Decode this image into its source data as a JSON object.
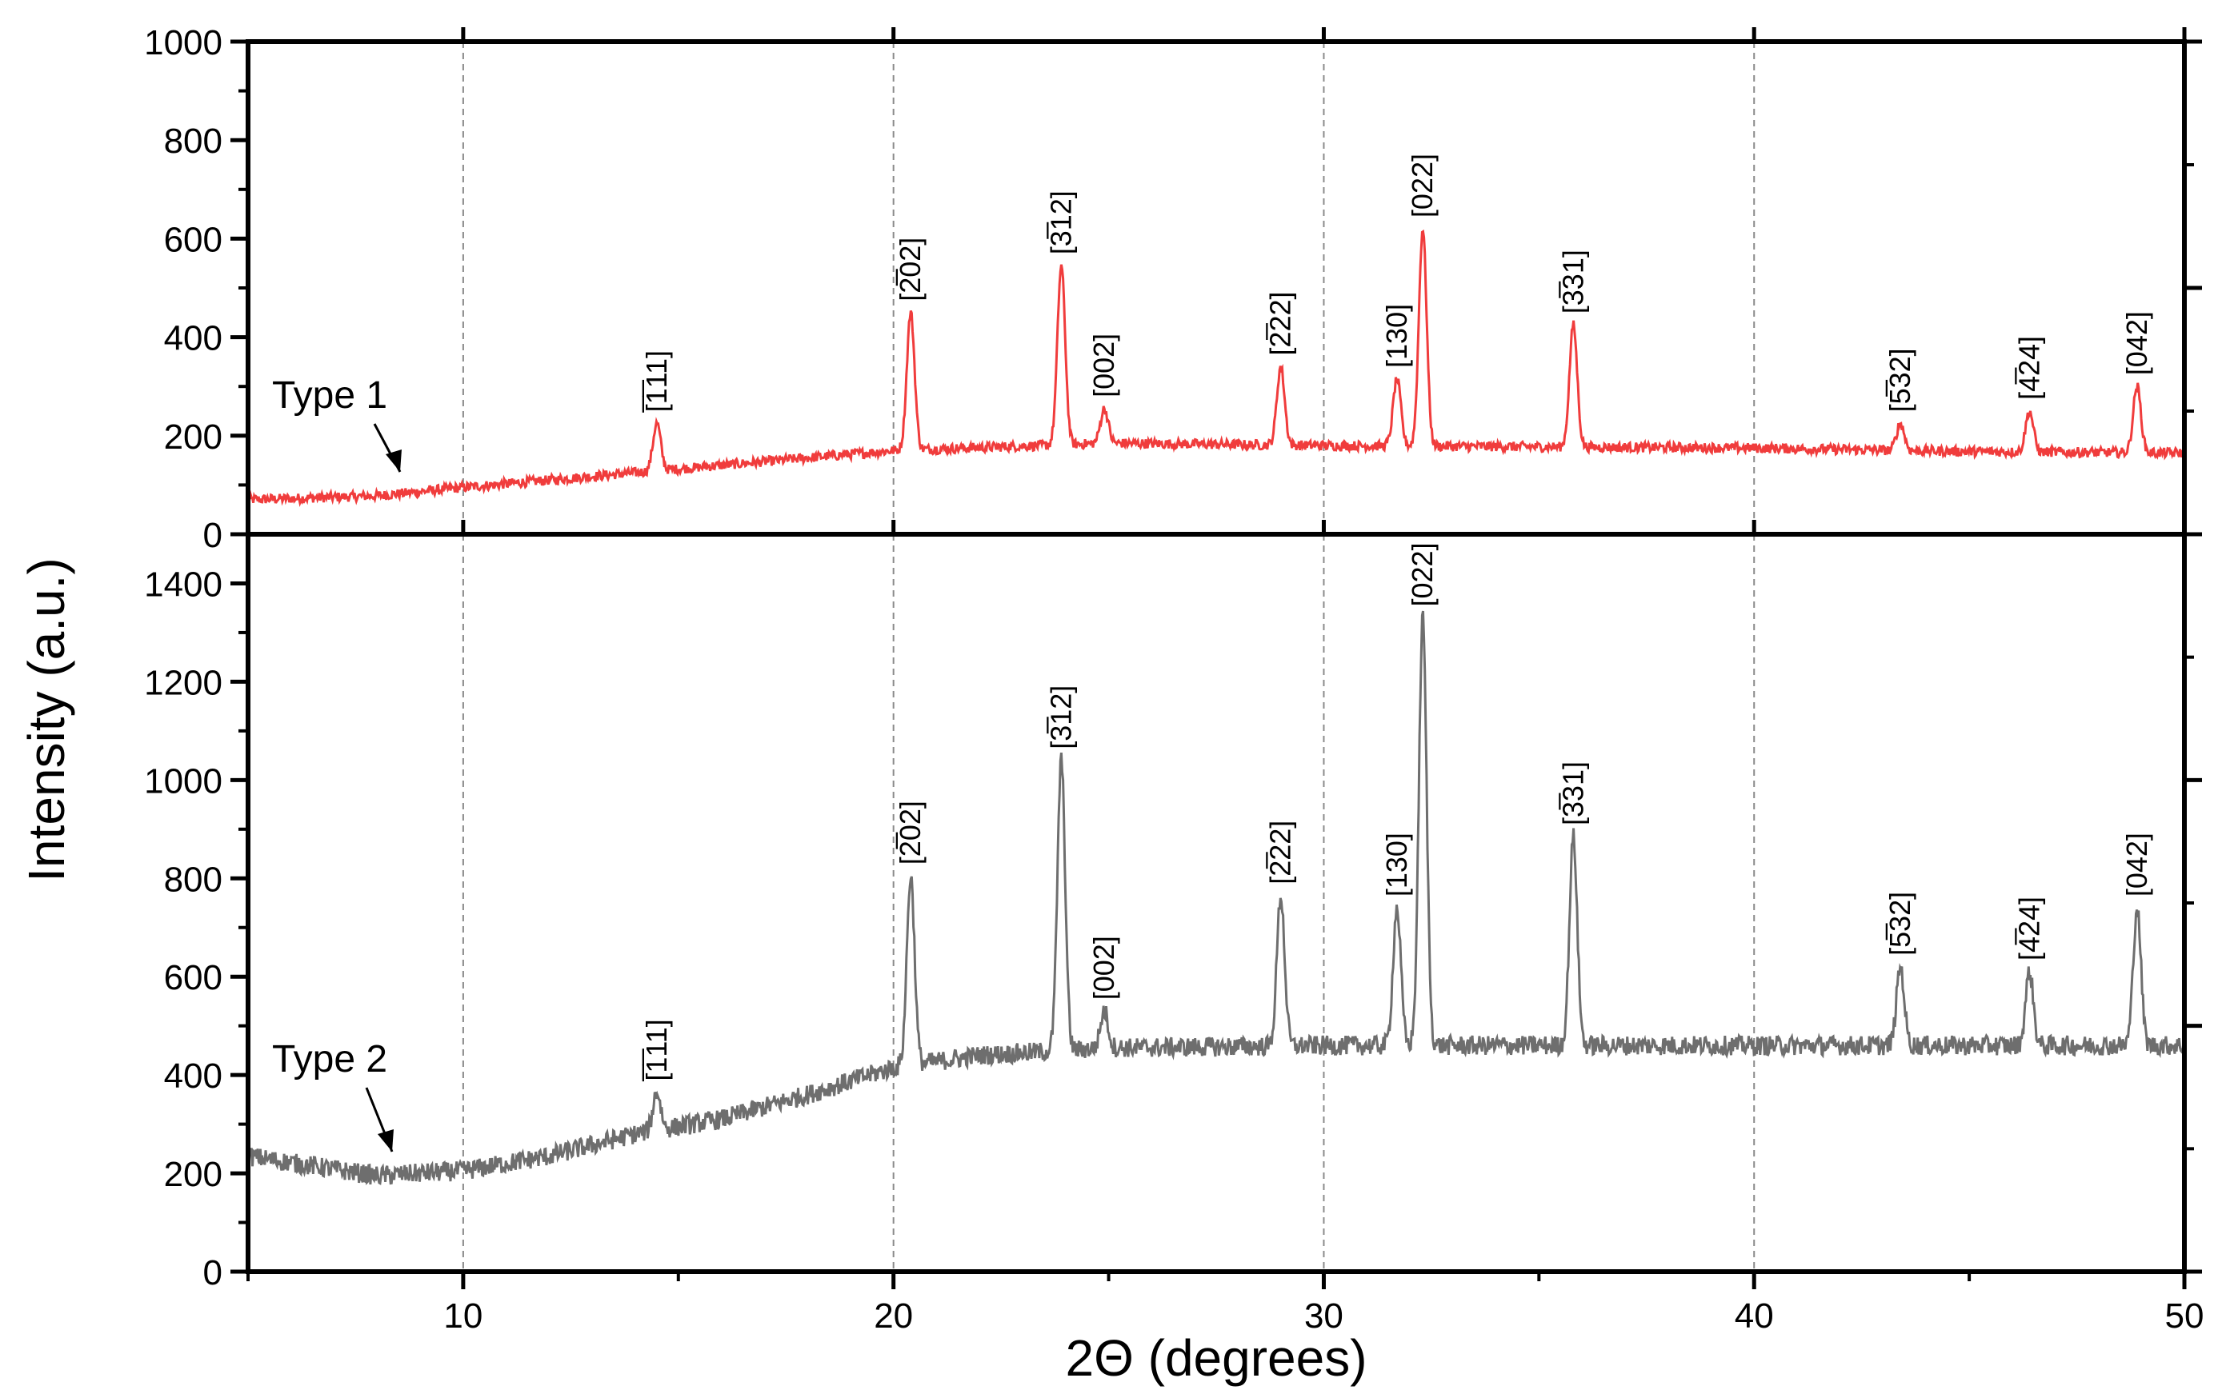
{
  "chart_data": {
    "type": "line",
    "xlabel": "2Θ (degrees)",
    "ylabel": "Intensity (a.u.)",
    "xlim": [
      5,
      50
    ],
    "xticks": [
      10,
      20,
      30,
      40,
      50
    ],
    "xtick_labels": [
      "10",
      "20",
      "30",
      "40",
      "50"
    ],
    "vertical_gridlines": [
      10,
      20,
      30,
      40
    ],
    "panels": [
      {
        "name": "Type 1",
        "color": "#f03c3c",
        "ylim": [
          0,
          1000
        ],
        "yticks": [
          0,
          200,
          400,
          600,
          800,
          1000
        ],
        "ytick_labels": [
          "0",
          "200",
          "400",
          "600",
          "800",
          "1000"
        ],
        "baseline": [
          [
            5,
            70
          ],
          [
            8,
            78
          ],
          [
            10,
            95
          ],
          [
            14,
            125
          ],
          [
            18,
            155
          ],
          [
            20,
            170
          ],
          [
            25,
            185
          ],
          [
            30,
            180
          ],
          [
            40,
            175
          ],
          [
            45,
            168
          ],
          [
            50,
            165
          ]
        ],
        "noise": 10,
        "peaks": [
          {
            "x": 14.5,
            "intensity": 225,
            "label": "[̅1̅11]"
          },
          {
            "x": 20.4,
            "intensity": 450,
            "label": "[2̅02]"
          },
          {
            "x": 23.9,
            "intensity": 545,
            "label": "[3̅12]"
          },
          {
            "x": 24.9,
            "intensity": 255,
            "label": "[002]"
          },
          {
            "x": 29.0,
            "intensity": 340,
            "label": "[2̅22]"
          },
          {
            "x": 31.7,
            "intensity": 315,
            "label": "[130]"
          },
          {
            "x": 32.3,
            "intensity": 620,
            "label": "[022]"
          },
          {
            "x": 35.8,
            "intensity": 425,
            "label": "[3̅31]"
          },
          {
            "x": 43.4,
            "intensity": 225,
            "label": "[5̅32]"
          },
          {
            "x": 46.4,
            "intensity": 250,
            "label": "[4̅24]"
          },
          {
            "x": 48.9,
            "intensity": 300,
            "label": "[042]"
          }
        ]
      },
      {
        "name": "Type 2",
        "color": "#6e6e6e",
        "ylim": [
          0,
          1500
        ],
        "yticks": [
          0,
          200,
          400,
          600,
          800,
          1000,
          1200,
          1400
        ],
        "ytick_labels": [
          "0",
          "200",
          "400",
          "600",
          "800",
          "1000",
          "1200",
          "1400"
        ],
        "baseline": [
          [
            5,
            235
          ],
          [
            8,
            195
          ],
          [
            10,
            205
          ],
          [
            12,
            235
          ],
          [
            14,
            280
          ],
          [
            16,
            310
          ],
          [
            18,
            360
          ],
          [
            20,
            415
          ],
          [
            22,
            440
          ],
          [
            25,
            455
          ],
          [
            30,
            460
          ],
          [
            40,
            460
          ],
          [
            50,
            460
          ]
        ],
        "noise": 20,
        "peaks": [
          {
            "x": 14.5,
            "intensity": 365,
            "label": "[̅1̅11]"
          },
          {
            "x": 20.4,
            "intensity": 805,
            "label": "[2̅02]"
          },
          {
            "x": 23.9,
            "intensity": 1040,
            "label": "[3̅12]"
          },
          {
            "x": 24.9,
            "intensity": 530,
            "label": "[002]"
          },
          {
            "x": 29.0,
            "intensity": 765,
            "label": "[2̅22]"
          },
          {
            "x": 31.7,
            "intensity": 740,
            "label": "[130]"
          },
          {
            "x": 32.3,
            "intensity": 1330,
            "label": "[022]"
          },
          {
            "x": 35.8,
            "intensity": 885,
            "label": "[3̅31]"
          },
          {
            "x": 43.4,
            "intensity": 620,
            "label": "[5̅32]"
          },
          {
            "x": 46.4,
            "intensity": 610,
            "label": "[4̅24]"
          },
          {
            "x": 48.9,
            "intensity": 740,
            "label": "[042]"
          }
        ]
      }
    ]
  }
}
